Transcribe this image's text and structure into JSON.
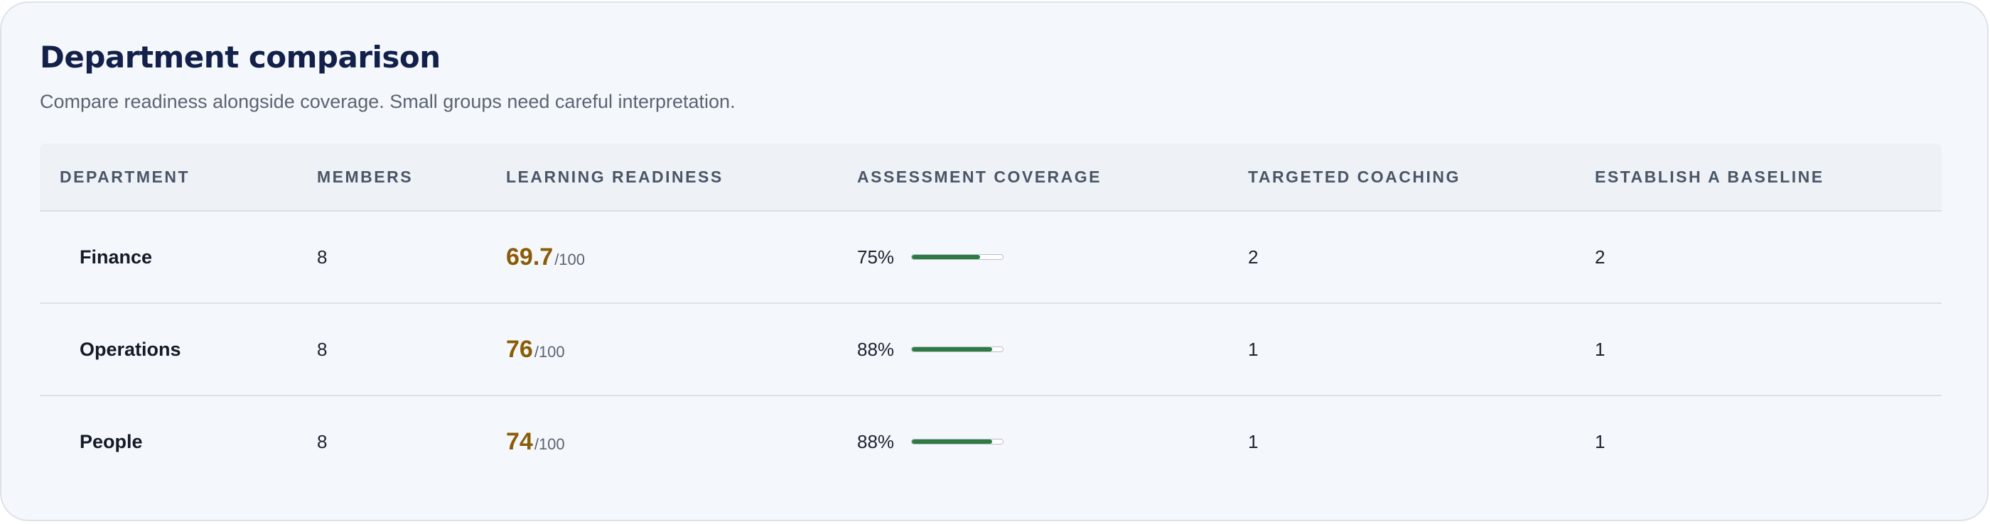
{
  "card": {
    "title": "Department comparison",
    "subtitle": "Compare readiness alongside coverage. Small groups need careful interpretation."
  },
  "table": {
    "columns": [
      "DEPARTMENT",
      "MEMBERS",
      "LEARNING READINESS",
      "ASSESSMENT COVERAGE",
      "TARGETED COACHING",
      "ESTABLISH A BASELINE"
    ],
    "rows": [
      {
        "department": "Finance",
        "members": "8",
        "readiness_value": "69.7",
        "readiness_max": "/100",
        "coverage_label": "75%",
        "coverage_fraction": 0.75,
        "targeted_coaching": "2",
        "establish_baseline": "2"
      },
      {
        "department": "Operations",
        "members": "8",
        "readiness_value": "76",
        "readiness_max": "/100",
        "coverage_label": "88%",
        "coverage_fraction": 0.88,
        "targeted_coaching": "1",
        "establish_baseline": "1"
      },
      {
        "department": "People",
        "members": "8",
        "readiness_value": "74",
        "readiness_max": "/100",
        "coverage_label": "88%",
        "coverage_fraction": 0.88,
        "targeted_coaching": "1",
        "establish_baseline": "1"
      }
    ]
  },
  "colors": {
    "title": "#12204a",
    "readiness_score": "#8a5c06",
    "coverage_bar": "#2e7a43",
    "card_background": "#f4f7fb",
    "header_background": "#eef2f7"
  }
}
